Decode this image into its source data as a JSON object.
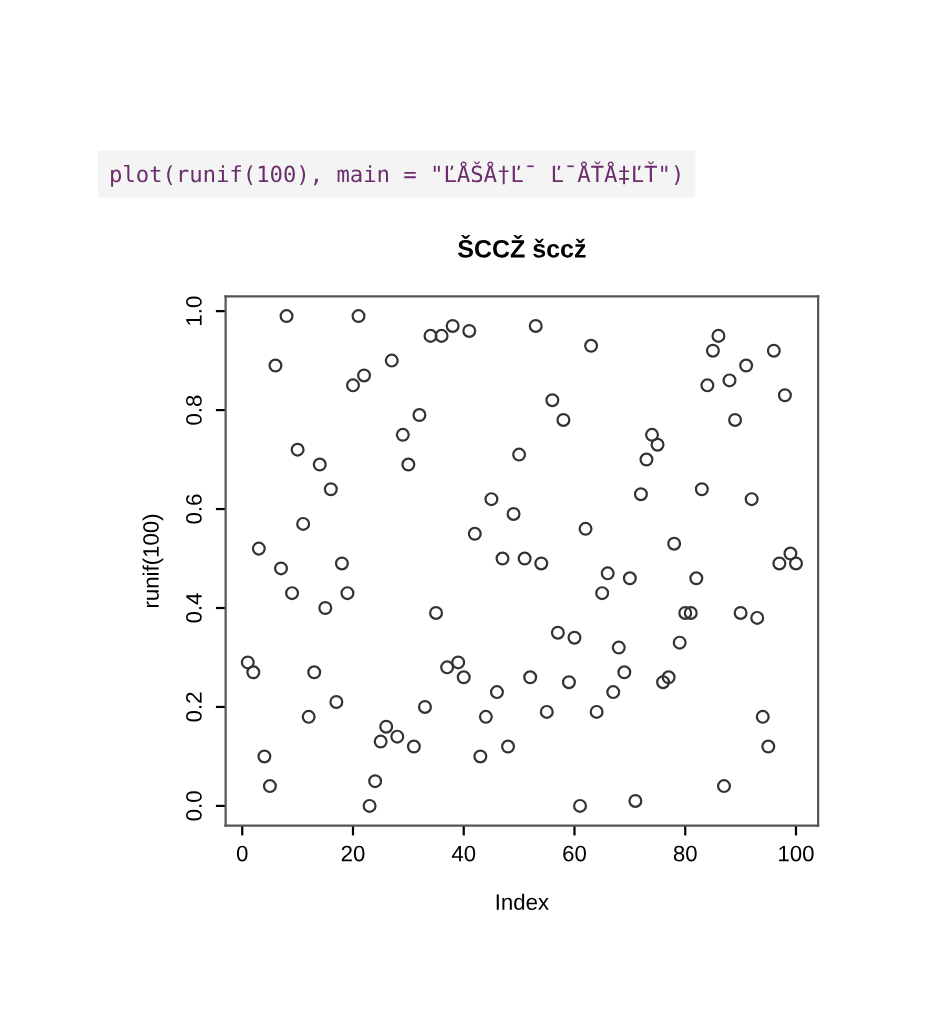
{
  "chart_data": {
    "type": "scatter",
    "title": "ŠCCŽ šccž",
    "xlabel": "Index",
    "ylabel": "runif(100)",
    "annotations": [
      "plot(runif(100), main = \"ĽÅŠÅ†Ľ¯ Ľ¯ÅŤÅ‡ĽŤ\")"
    ],
    "x": [
      1,
      2,
      3,
      4,
      5,
      6,
      7,
      8,
      9,
      10,
      11,
      12,
      13,
      14,
      15,
      16,
      17,
      18,
      19,
      20,
      21,
      22,
      23,
      24,
      25,
      26,
      27,
      28,
      29,
      30,
      31,
      32,
      33,
      34,
      35,
      36,
      37,
      38,
      39,
      40,
      41,
      42,
      43,
      44,
      45,
      46,
      47,
      48,
      49,
      50,
      51,
      52,
      53,
      54,
      55,
      56,
      57,
      58,
      59,
      60,
      61,
      62,
      63,
      64,
      65,
      66,
      67,
      68,
      69,
      70,
      71,
      72,
      73,
      74,
      75,
      76,
      77,
      78,
      79,
      80,
      81,
      82,
      83,
      84,
      85,
      86,
      87,
      88,
      89,
      90,
      91,
      92,
      93,
      94,
      95,
      96,
      97,
      98,
      99,
      100
    ],
    "series": [
      {
        "color": "#333333",
        "values": [
          0.29,
          0.27,
          0.52,
          0.1,
          0.04,
          0.89,
          0.48,
          0.99,
          0.43,
          0.72,
          0.57,
          0.18,
          0.27,
          0.69,
          0.4,
          0.64,
          0.21,
          0.49,
          0.43,
          0.85,
          0.99,
          0.87,
          0.0,
          0.05,
          0.13,
          0.16,
          0.9,
          0.14,
          0.75,
          0.69,
          0.12,
          0.79,
          0.2,
          0.95,
          0.39,
          0.95,
          0.28,
          0.97,
          0.29,
          0.26,
          0.96,
          0.55,
          0.1,
          0.18,
          0.62,
          0.23,
          0.5,
          0.12,
          0.59,
          0.71,
          0.5,
          0.26,
          0.97,
          0.49,
          0.19,
          0.82,
          0.35,
          0.78,
          0.25,
          0.34,
          0.0,
          0.56,
          0.93,
          0.19,
          0.43,
          0.47,
          0.23,
          0.32,
          0.27,
          0.46,
          0.01,
          0.63,
          0.7,
          0.75,
          0.73,
          0.25,
          0.26,
          0.53,
          0.33,
          0.39,
          0.39,
          0.46,
          0.64,
          0.85,
          0.92,
          0.95,
          0.04,
          0.86,
          0.78,
          0.39,
          0.89,
          0.62,
          0.38,
          0.18,
          0.12,
          0.92,
          0.49,
          0.83,
          0.51,
          0.49
        ]
      }
    ],
    "xlim": [
      -3,
      104
    ],
    "ylim": [
      -0.04,
      1.03
    ],
    "xticks": [
      0,
      20,
      40,
      60,
      80,
      100
    ],
    "yticks": [
      {
        "value": 0,
        "label": "0.0"
      },
      {
        "value": 0.2,
        "label": "0.2"
      },
      {
        "value": 0.4,
        "label": "0.4"
      },
      {
        "value": 0.6,
        "label": "0.6"
      },
      {
        "value": 0.8,
        "label": "0.8"
      },
      {
        "value": 1,
        "label": "1.0"
      }
    ],
    "marker": "circle",
    "grid": false,
    "legend": false
  }
}
